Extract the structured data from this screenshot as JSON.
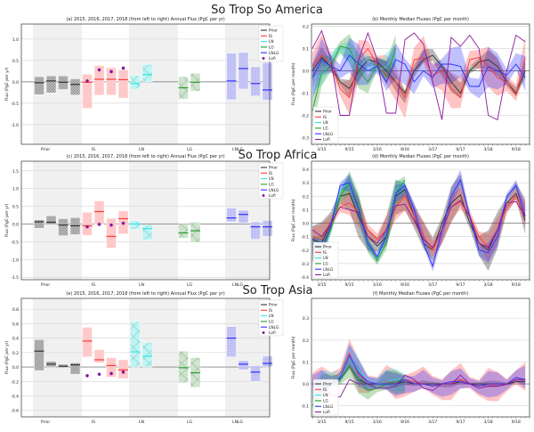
{
  "region_titles": [
    "So Trop So America",
    "So Trop Africa",
    "So Trop Asia"
  ],
  "colors": {
    "Prior": "#333333",
    "IS": "#ff3b3b",
    "LN": "#33e6e6",
    "LG": "#2a9a2a",
    "LNLG": "#2f2fff",
    "Lofi": "#8b1a9b"
  },
  "legend": [
    "Prior",
    "IS",
    "LN",
    "LG",
    "LNLG",
    "Lofi"
  ],
  "chart_data": [
    {
      "id": "a",
      "type": "bar",
      "title": "(a)   2015, 2016, 2017, 2018 (from left to right) Annual Flux (PgC per yr)",
      "ylabel": "Flux (PgC per yr)",
      "categories": [
        "Prior",
        "IS",
        "LN",
        "LG",
        "LNLG"
      ],
      "ylim": [
        -1.46,
        1.35
      ],
      "yticks": [
        "-1.0",
        "-0.5",
        "0.0",
        "0.5",
        "1.0"
      ],
      "legend_position": "top-right",
      "series": {
        "Prior": [
          [
            -0.02,
            -0.3,
            0.12
          ],
          [
            0.02,
            -0.26,
            0.14
          ],
          [
            -0.01,
            -0.18,
            0.14
          ],
          [
            -0.06,
            -0.31,
            0.07
          ]
        ],
        "IS": [
          [
            -0.01,
            -0.62,
            0.18
          ],
          [
            0.06,
            -0.31,
            0.38
          ],
          [
            0.06,
            -0.31,
            0.33
          ],
          [
            0.05,
            -0.38,
            0.28
          ]
        ],
        "LN": [
          [
            -0.04,
            -0.17,
            0.15
          ],
          [
            0.17,
            0.0,
            0.41
          ]
        ],
        "LG": [
          [
            -0.14,
            -0.4,
            0.12
          ],
          [
            -0.01,
            -0.22,
            0.2
          ]
        ],
        "LNLG": [
          [
            0.02,
            -0.42,
            0.67
          ],
          [
            0.31,
            -0.17,
            0.69
          ],
          [
            -0.04,
            -0.33,
            0.35
          ],
          [
            -0.19,
            -0.43,
            0.45
          ]
        ]
      },
      "lofi": [
        0.02,
        0.28,
        0.24,
        0.32
      ]
    },
    {
      "id": "b",
      "type": "line",
      "title": "(b)  Monthly Median Fluxes (PgC per month)",
      "ylabel": "Flux (PgC per month)",
      "ylim": [
        -0.33,
        0.21
      ],
      "yticks": [
        "-0.3",
        "-0.2",
        "-0.1",
        "0.0",
        "0.1",
        "0.2"
      ],
      "xticks": [
        "3/15",
        "9/15",
        "3/16",
        "9/16",
        "3/17",
        "9/17",
        "3/18",
        "9/18"
      ],
      "legend_position": "bottom-left",
      "x_step_months": 2,
      "series": {
        "Prior": [
          0.0,
          0.06,
          0.02,
          -0.05,
          -0.08,
          0.0,
          0.05,
          0.04,
          0.0,
          -0.05,
          -0.1,
          0.0,
          0.05,
          0.07,
          0.02,
          -0.05,
          -0.1,
          0.0,
          0.04,
          0.05,
          0.02,
          -0.05,
          -0.1,
          0.0
        ],
        "IS": [
          0.02,
          0.07,
          0.03,
          -0.08,
          -0.12,
          0.05,
          0.1,
          0.03,
          -0.02,
          -0.05,
          -0.12,
          0.05,
          0.06,
          -0.02,
          0.0,
          -0.08,
          -0.12,
          0.05,
          0.06,
          0.02,
          -0.03,
          -0.05,
          -0.11,
          0.06
        ],
        "LN": [
          -0.03,
          -0.02,
          0.05,
          0.1,
          0.08,
          0.02,
          0.05,
          0.0,
          0.02,
          0.07,
          null,
          null,
          null,
          null,
          null,
          null,
          null,
          null,
          null,
          null,
          null,
          null,
          null,
          null
        ],
        "LG": [
          -0.18,
          -0.01,
          0.02,
          0.11,
          0.1,
          0.0,
          -0.05,
          0.03,
          -0.03,
          0.1,
          null,
          null,
          null,
          null,
          null,
          null,
          null,
          null,
          null,
          null,
          null,
          null,
          null,
          null
        ],
        "LNLG": [
          -0.03,
          0.05,
          0.02,
          0.0,
          0.07,
          0.03,
          0.0,
          0.02,
          -0.05,
          0.05,
          0.03,
          -0.05,
          0.0,
          -0.03,
          0.03,
          0.03,
          0.02,
          -0.07,
          -0.07,
          0.02,
          0.0,
          -0.02,
          0.03,
          -0.03
        ],
        "Lofi": [
          0.1,
          0.18,
          0.05,
          -0.2,
          -0.2,
          0.05,
          0.17,
          0.05,
          -0.19,
          -0.19,
          0.14,
          0.17,
          0.12,
          -0.05,
          -0.22,
          0.15,
          0.11,
          0.16,
          0.1,
          -0.2,
          -0.22,
          0.0,
          0.16,
          0.13
        ]
      },
      "spread": {
        "Prior": 0.03,
        "IS": 0.06,
        "LN": 0.04,
        "LG": 0.05,
        "LNLG": 0.06
      }
    },
    {
      "id": "c",
      "type": "bar",
      "title": "(c)   2015, 2016, 2017, 2018 (from left to right) Annual Flux (PgC per yr)",
      "ylabel": "Flux (PgC per yr)",
      "categories": [
        "Prior",
        "IS",
        "LN",
        "LG",
        "LNLG"
      ],
      "ylim": [
        -1.57,
        1.77
      ],
      "yticks": [
        "-1.5",
        "-1.0",
        "-0.5",
        "0.0",
        "0.5",
        "1.0",
        "1.5"
      ],
      "legend_position": "top-right",
      "series": {
        "Prior": [
          [
            0.06,
            -0.12,
            0.12
          ],
          [
            0.05,
            -0.02,
            0.23
          ],
          [
            -0.03,
            -0.33,
            0.15
          ],
          [
            -0.05,
            -0.3,
            0.18
          ]
        ],
        "IS": [
          [
            -0.05,
            -0.32,
            0.33
          ],
          [
            0.35,
            0.0,
            0.65
          ],
          [
            -0.35,
            -0.68,
            0.16
          ],
          [
            0.15,
            -0.28,
            0.37
          ]
        ],
        "LN": [
          [
            0.0,
            -0.15,
            0.09
          ],
          [
            -0.13,
            -0.45,
            -0.02
          ]
        ],
        "LG": [
          [
            -0.25,
            -0.4,
            -0.01
          ],
          [
            -0.19,
            -0.52,
            0.05
          ]
        ],
        "LNLG": [
          [
            0.17,
            0.06,
            0.45
          ],
          [
            0.27,
            0.03,
            0.39
          ],
          [
            -0.08,
            -0.43,
            0.06
          ],
          [
            -0.08,
            -0.35,
            0.1
          ]
        ]
      },
      "lofi": [
        -0.08,
        -0.01,
        -0.03,
        0.02
      ]
    },
    {
      "id": "d",
      "type": "line",
      "title": "(d)  Monthly Median Fluxes (PgC per month)",
      "ylabel": "Flux (PgC per month)",
      "ylim": [
        -0.42,
        0.46
      ],
      "yticks": [
        "-0.4",
        "-0.3",
        "-0.2",
        "-0.1",
        "0.0",
        "0.1",
        "0.2",
        "0.3",
        "0.4"
      ],
      "xticks": [
        "3/15",
        "9/15",
        "3/16",
        "9/16",
        "3/17",
        "9/17",
        "3/18",
        "9/18"
      ],
      "legend_position": "bottom-left",
      "x_step_months": 2,
      "series": {
        "Prior": [
          -0.12,
          -0.15,
          0.0,
          0.2,
          0.22,
          0.05,
          -0.1,
          -0.17,
          -0.1,
          0.2,
          0.25,
          0.05,
          -0.15,
          -0.2,
          0.0,
          0.15,
          0.21,
          0.0,
          -0.15,
          -0.2,
          -0.05,
          0.15,
          0.22,
          0.02
        ],
        "IS": [
          -0.1,
          -0.12,
          0.0,
          0.12,
          0.15,
          0.08,
          -0.05,
          -0.12,
          -0.05,
          0.12,
          0.2,
          0.05,
          -0.1,
          -0.2,
          -0.05,
          0.12,
          0.16,
          0.05,
          -0.1,
          -0.18,
          -0.05,
          0.12,
          0.2,
          0.05
        ],
        "LN": [
          -0.15,
          -0.2,
          -0.05,
          0.25,
          0.3,
          0.1,
          -0.15,
          -0.28,
          -0.1,
          0.25,
          0.3,
          null,
          null,
          null,
          null,
          null,
          null,
          null,
          null,
          null,
          null,
          null,
          null,
          null
        ],
        "LG": [
          -0.18,
          -0.2,
          -0.05,
          0.2,
          0.3,
          0.12,
          -0.15,
          -0.28,
          -0.15,
          0.22,
          0.32,
          null,
          null,
          null,
          null,
          null,
          null,
          null,
          null,
          null,
          null,
          null,
          null,
          null
        ],
        "LNLG": [
          -0.15,
          -0.2,
          -0.02,
          0.28,
          0.3,
          0.1,
          -0.15,
          -0.25,
          -0.1,
          0.22,
          0.28,
          0.1,
          -0.15,
          -0.32,
          -0.05,
          0.2,
          0.32,
          0.05,
          -0.2,
          -0.22,
          -0.1,
          0.2,
          0.28,
          0.05
        ],
        "Lofi": [
          -0.05,
          -0.1,
          0.0,
          0.12,
          0.1,
          0.08,
          -0.1,
          -0.15,
          -0.05,
          0.13,
          0.14,
          0.02,
          -0.12,
          -0.18,
          -0.05,
          0.12,
          0.17,
          0.05,
          -0.15,
          -0.18,
          -0.05,
          0.15,
          0.16,
          0.05
        ]
      },
      "spread": {
        "Prior": 0.1,
        "IS": 0.07,
        "LN": 0.05,
        "LG": 0.07,
        "LNLG": 0.05
      }
    },
    {
      "id": "e",
      "type": "bar",
      "title": "(e)   2015, 2016, 2017, 2018 (from left to right) Annual Flux (PgC per yr)",
      "ylabel": "Flux (PgC per yr)",
      "categories": [
        "Prior",
        "IS",
        "LN",
        "LG",
        "LNLG"
      ],
      "ylim": [
        -0.69,
        0.95
      ],
      "yticks": [
        "-0.6",
        "-0.4",
        "-0.2",
        "0.0",
        "0.2",
        "0.4",
        "0.6",
        "0.8"
      ],
      "legend_position": "top-right",
      "series": {
        "Prior": [
          [
            0.22,
            -0.05,
            0.38
          ],
          [
            0.04,
            0.0,
            0.08
          ],
          [
            0.01,
            -0.01,
            0.04
          ],
          [
            0.03,
            -0.1,
            0.06
          ]
        ],
        "IS": [
          [
            0.36,
            0.14,
            0.55
          ],
          [
            0.1,
            0.06,
            0.24
          ],
          [
            0.02,
            -0.14,
            0.13
          ],
          [
            -0.04,
            -0.16,
            0.1
          ]
        ],
        "LN": [
          [
            0.21,
            0.0,
            0.63
          ],
          [
            0.15,
            0.0,
            0.34
          ]
        ],
        "LG": [
          [
            -0.01,
            -0.22,
            0.22
          ],
          [
            -0.08,
            -0.28,
            0.13
          ]
        ],
        "LNLG": [
          [
            0.4,
            0.14,
            0.56
          ],
          [
            0.04,
            -0.04,
            0.09
          ],
          [
            -0.07,
            -0.2,
            0.02
          ],
          [
            0.05,
            0.0,
            0.15
          ]
        ]
      },
      "lofi": [
        -0.12,
        -0.1,
        -0.09,
        -0.07
      ]
    },
    {
      "id": "f",
      "type": "line",
      "title": "(f)  Monthly Median Fluxes (PgC per month)",
      "ylabel": "Flux (PgC per month)",
      "ylim": [
        -0.15,
        0.39
      ],
      "yticks": [
        "-0.1",
        "0.0",
        "0.1",
        "0.2",
        "0.3"
      ],
      "xticks": [
        "3/15",
        "9/15",
        "3/16",
        "9/16",
        "3/17",
        "9/17",
        "3/18",
        "9/18"
      ],
      "legend_position": "bottom-left",
      "x_step_months": 2,
      "series": {
        "Prior": [
          0,
          0,
          0,
          0.02,
          0.08,
          0.02,
          0,
          0,
          0,
          0,
          0.01,
          0,
          0,
          0,
          0,
          0,
          0.01,
          0,
          0,
          0,
          0,
          0,
          0.01,
          0.01
        ],
        "IS": [
          0,
          0,
          0.01,
          0.05,
          0.14,
          0.04,
          0.01,
          0,
          0.01,
          0,
          0.02,
          0.01,
          0,
          -0.01,
          0,
          0,
          0.02,
          0,
          -0.01,
          0,
          -0.01,
          0,
          0.02,
          0.02
        ],
        "LN": [
          -0.05,
          0,
          0.02,
          0.04,
          0.13,
          0.06,
          0.01,
          0,
          0.01,
          0.02,
          0.03,
          null,
          null,
          null,
          null,
          null,
          null,
          null,
          null,
          null,
          null,
          null,
          null,
          null
        ],
        "LG": [
          -0.1,
          -0.02,
          0.01,
          0.02,
          0.08,
          0.02,
          -0.03,
          -0.02,
          0,
          0.01,
          0.02,
          null,
          null,
          null,
          null,
          null,
          null,
          null,
          null,
          null,
          null,
          null,
          null,
          null
        ],
        "LNLG": [
          0,
          0,
          0,
          0.03,
          0.13,
          0.05,
          0.01,
          0,
          0,
          0,
          0.02,
          0,
          0,
          -0.01,
          0,
          0.01,
          0.01,
          0,
          -0.01,
          0,
          0,
          0,
          0.03,
          0.02
        ],
        "Lofi": [
          0.02,
          0,
          -0.05,
          -0.06,
          0.02,
          0,
          0,
          -0.02,
          -0.02,
          -0.01,
          0.04,
          0.02,
          -0.02,
          -0.03,
          0,
          0,
          0.04,
          0,
          -0.02,
          -0.01,
          -0.01,
          0,
          0.02,
          0.02
        ]
      },
      "spread": {
        "Prior": 0.01,
        "IS": 0.05,
        "LN": 0.04,
        "LG": 0.04,
        "LNLG": 0.04
      }
    }
  ]
}
